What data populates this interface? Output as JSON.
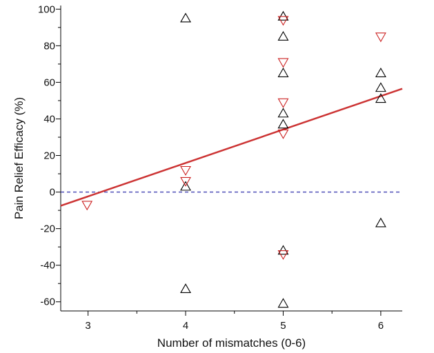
{
  "chart_data": {
    "type": "scatter",
    "xlabel": "Number of mismatches (0-6)",
    "ylabel": "Pain Relief Efficacy (%)",
    "xlim": [
      2.72,
      6.22
    ],
    "ylim": [
      -65,
      102
    ],
    "xticks": [
      3,
      4,
      5,
      6
    ],
    "yticks": [
      -60,
      -40,
      -20,
      0,
      20,
      40,
      60,
      80,
      100
    ],
    "grid": false,
    "legend": "none",
    "series": [
      {
        "marker": "triangle-up",
        "color": "#000000",
        "points": [
          [
            4,
            95
          ],
          [
            4,
            3
          ],
          [
            4,
            -53
          ],
          [
            5,
            96
          ],
          [
            5,
            85
          ],
          [
            5,
            65
          ],
          [
            5,
            43
          ],
          [
            5,
            37
          ],
          [
            5,
            -32
          ],
          [
            5,
            -61
          ],
          [
            6,
            65
          ],
          [
            6,
            57
          ],
          [
            6,
            51
          ],
          [
            6,
            -17
          ]
        ]
      },
      {
        "marker": "triangle-down",
        "color": "#cc2222",
        "points": [
          [
            2.99,
            -7
          ],
          [
            4,
            12
          ],
          [
            4,
            6
          ],
          [
            5,
            94
          ],
          [
            5,
            71
          ],
          [
            5,
            49
          ],
          [
            5,
            32
          ],
          [
            5,
            -34
          ],
          [
            6,
            85
          ]
        ]
      }
    ],
    "trendline": {
      "color": "#cc3333",
      "x": [
        2.72,
        6.22
      ],
      "y": [
        -7.5,
        56.5
      ]
    },
    "zero_line": {
      "y": 0,
      "color": "#3b3bb0",
      "style": "dashed"
    }
  }
}
